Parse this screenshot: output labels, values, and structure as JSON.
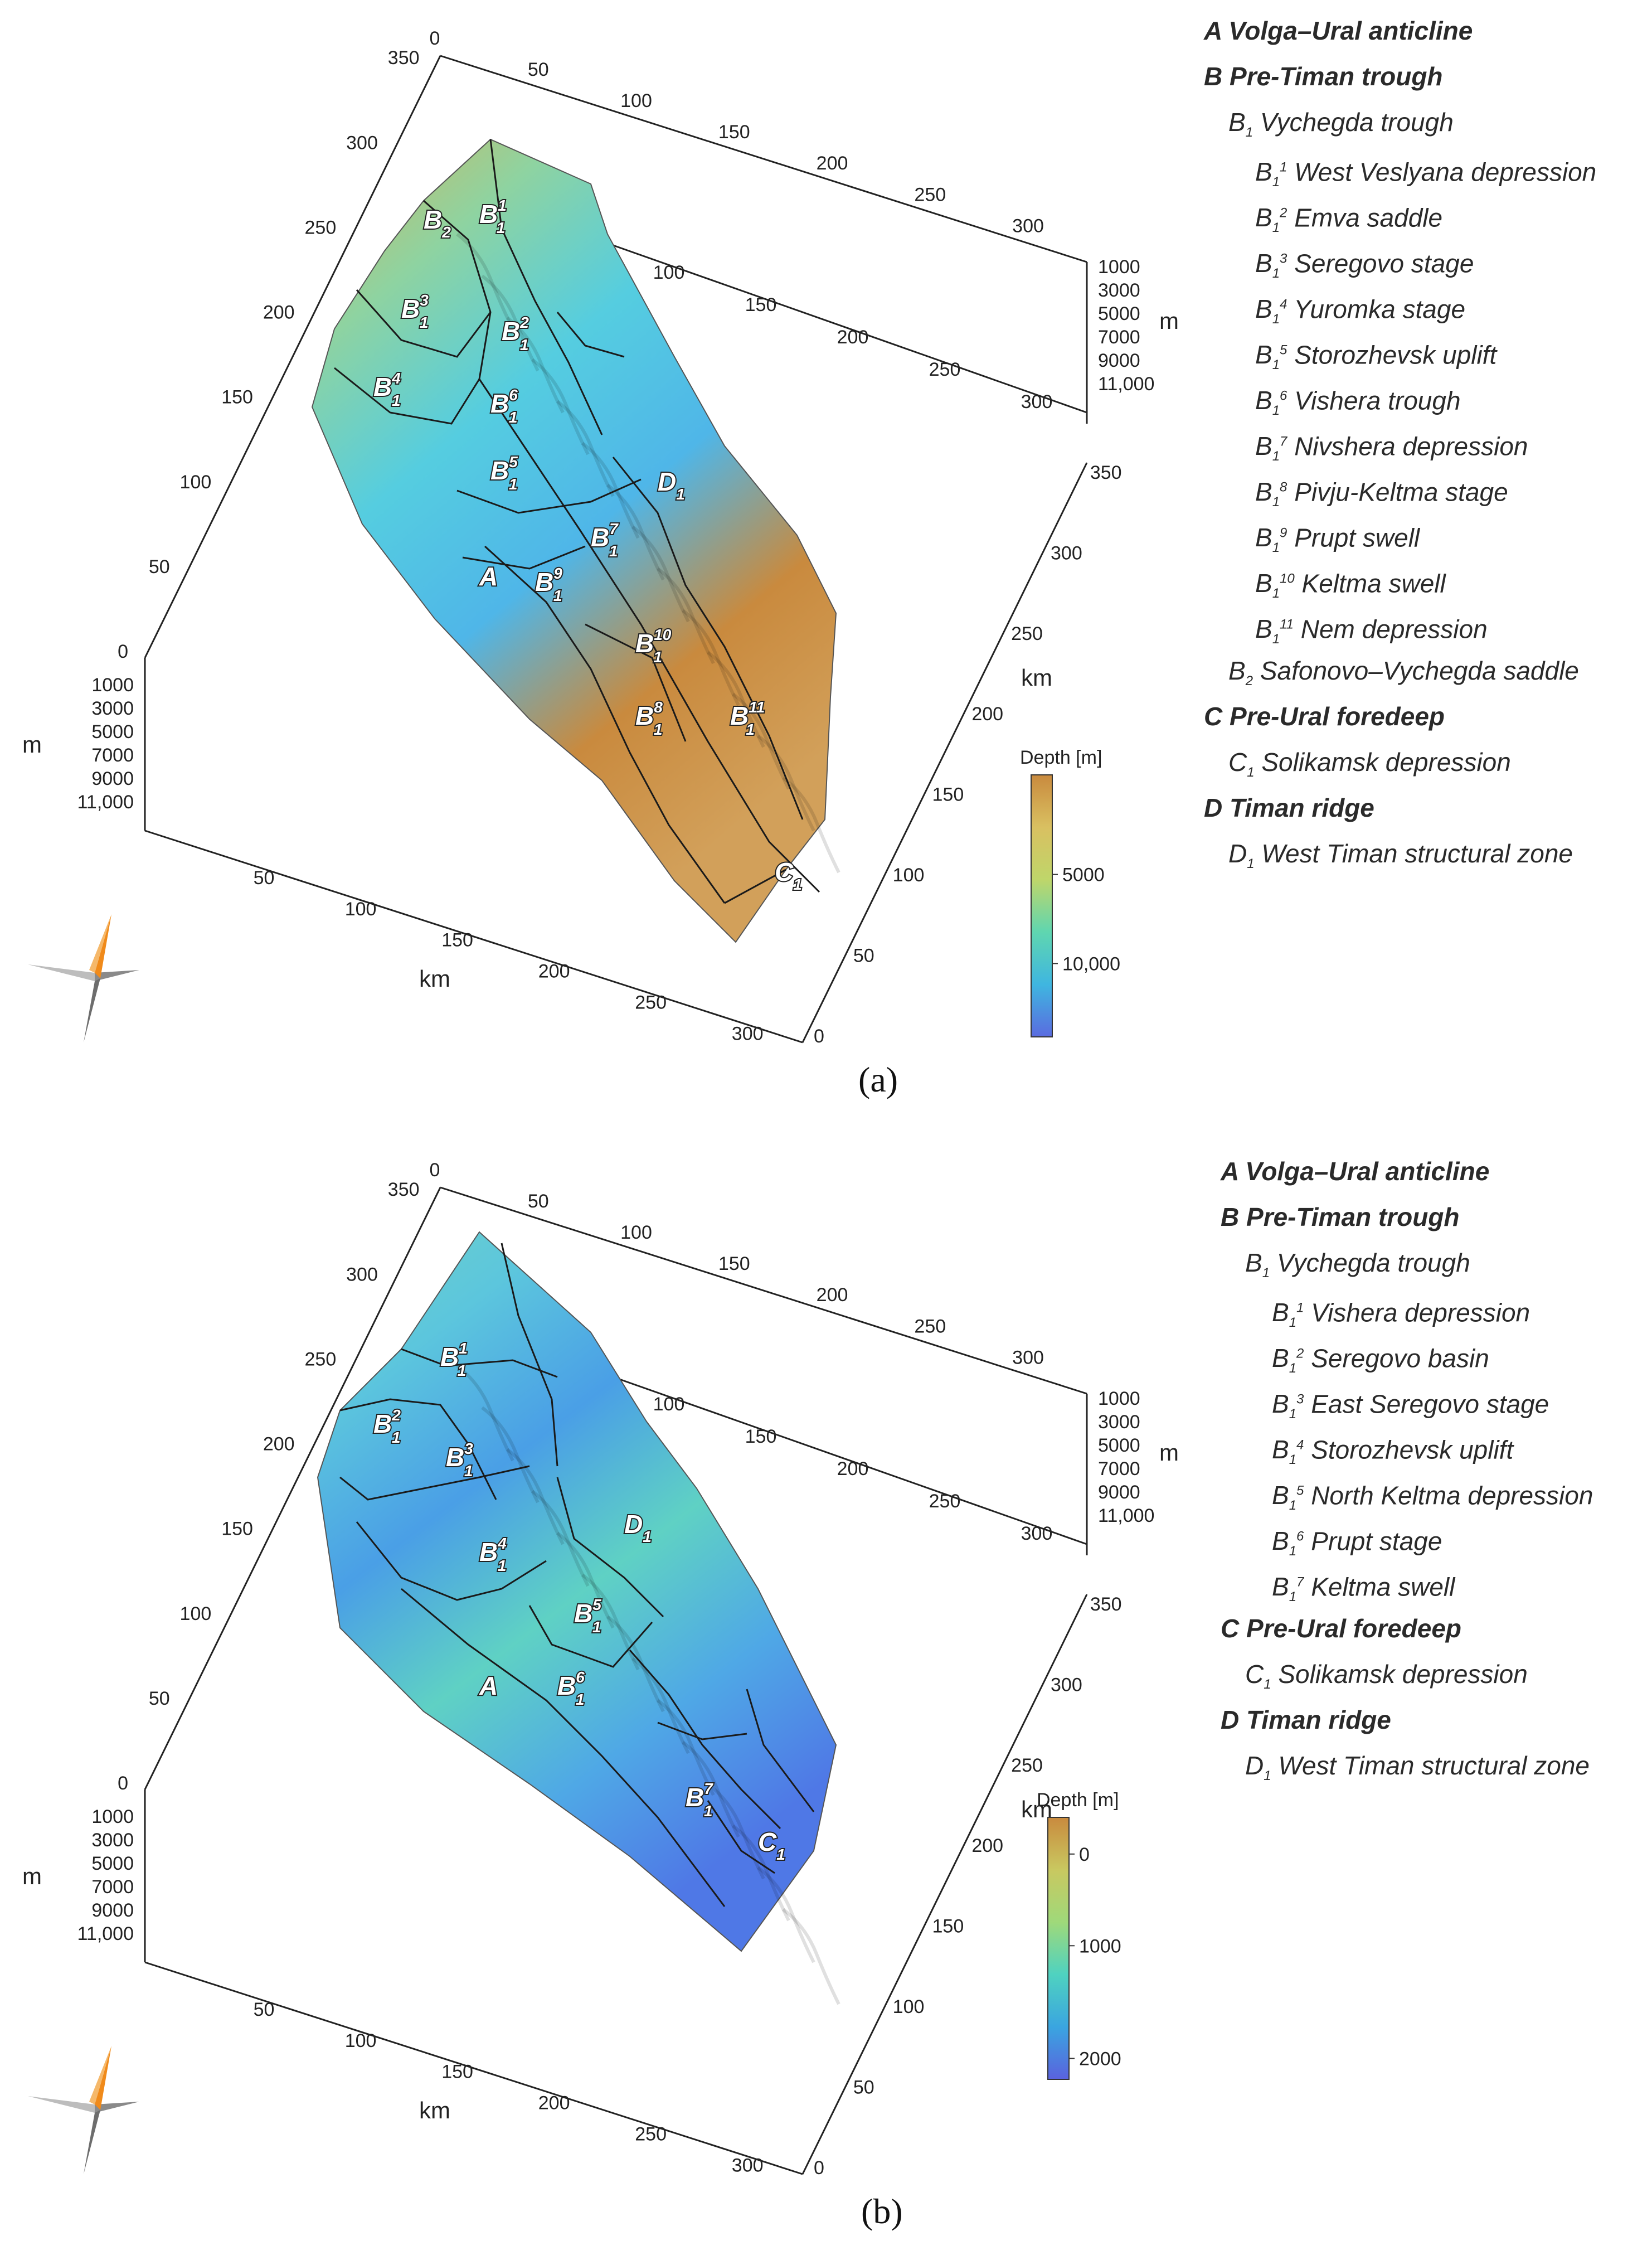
{
  "panels": [
    {
      "id": "a",
      "panel_label": "(a)",
      "axes": {
        "x_ticks": [
          "0",
          "50",
          "100",
          "150",
          "200",
          "250",
          "300"
        ],
        "x_unit": "km",
        "y_ticks": [
          "0",
          "50",
          "100",
          "150",
          "200",
          "250",
          "300",
          "350"
        ],
        "y_unit": "km",
        "z_ticks": [
          "1000",
          "3000",
          "5000",
          "7000",
          "9000",
          "11,000"
        ],
        "z_unit": "m",
        "left_ticks": [
          "0",
          "50",
          "100",
          "150",
          "200",
          "250",
          "300",
          "350"
        ],
        "back_ticks": [
          "0",
          "50",
          "100",
          "150",
          "200",
          "250",
          "300"
        ],
        "mid_ticks": [
          "100",
          "150",
          "200",
          "250",
          "300"
        ]
      },
      "colorbar": {
        "title": "Depth [m]",
        "ticks": [
          "5000",
          "10,000"
        ],
        "colors": [
          "#c98a3e",
          "#d9c061",
          "#bfd66a",
          "#5fd6b0",
          "#3fb6e0",
          "#5a6be0"
        ]
      },
      "region_labels": [
        {
          "base": "B",
          "sub": "2",
          "sup": ""
        },
        {
          "base": "B",
          "sub": "1",
          "sup": "1"
        },
        {
          "base": "B",
          "sub": "1",
          "sup": "3"
        },
        {
          "base": "B",
          "sub": "1",
          "sup": "2"
        },
        {
          "base": "B",
          "sub": "1",
          "sup": "4"
        },
        {
          "base": "B",
          "sub": "1",
          "sup": "6"
        },
        {
          "base": "B",
          "sub": "1",
          "sup": "5"
        },
        {
          "base": "D",
          "sub": "1",
          "sup": ""
        },
        {
          "base": "B",
          "sub": "1",
          "sup": "7"
        },
        {
          "base": "A",
          "sub": "",
          "sup": ""
        },
        {
          "base": "B",
          "sub": "1",
          "sup": "9"
        },
        {
          "base": "B",
          "sub": "1",
          "sup": "10"
        },
        {
          "base": "B",
          "sub": "1",
          "sup": "8"
        },
        {
          "base": "B",
          "sub": "1",
          "sup": "11"
        },
        {
          "base": "C",
          "sub": "1",
          "sup": ""
        }
      ],
      "legend": [
        {
          "level": 0,
          "code": "A",
          "sub": "",
          "sup": "",
          "name": "Volga–Ural anticline"
        },
        {
          "level": 0,
          "code": "B",
          "sub": "",
          "sup": "",
          "name": "Pre-Timan trough"
        },
        {
          "level": 1,
          "code": "B",
          "sub": "1",
          "sup": "",
          "name": "Vychegda trough"
        },
        {
          "level": 2,
          "code": "B",
          "sub": "1",
          "sup": "1",
          "name": "West Veslyana depression"
        },
        {
          "level": 2,
          "code": "B",
          "sub": "1",
          "sup": "2",
          "name": "Emva saddle"
        },
        {
          "level": 2,
          "code": "B",
          "sub": "1",
          "sup": "3",
          "name": "Seregovo stage"
        },
        {
          "level": 2,
          "code": "B",
          "sub": "1",
          "sup": "4",
          "name": "Yuromka stage"
        },
        {
          "level": 2,
          "code": "B",
          "sub": "1",
          "sup": "5",
          "name": "Storozhevsk uplift"
        },
        {
          "level": 2,
          "code": "B",
          "sub": "1",
          "sup": "6",
          "name": "Vishera trough"
        },
        {
          "level": 2,
          "code": "B",
          "sub": "1",
          "sup": "7",
          "name": "Nivshera depression"
        },
        {
          "level": 2,
          "code": "B",
          "sub": "1",
          "sup": "8",
          "name": "Pivju-Keltma stage"
        },
        {
          "level": 2,
          "code": "B",
          "sub": "1",
          "sup": "9",
          "name": "Prupt swell"
        },
        {
          "level": 2,
          "code": "B",
          "sub": "1",
          "sup": "10",
          "name": "Keltma swell"
        },
        {
          "level": 2,
          "code": "B",
          "sub": "1",
          "sup": "11",
          "name": "Nem depression"
        },
        {
          "level": 1,
          "code": "B",
          "sub": "2",
          "sup": "",
          "name": "Safonovo–Vychegda saddle"
        },
        {
          "level": 0,
          "code": "C",
          "sub": "",
          "sup": "",
          "name": "Pre-Ural foredeep"
        },
        {
          "level": 1,
          "code": "C",
          "sub": "1",
          "sup": "",
          "name": "Solikamsk depression"
        },
        {
          "level": 0,
          "code": "D",
          "sub": "",
          "sup": "",
          "name": "Timan ridge"
        },
        {
          "level": 1,
          "code": "D",
          "sub": "1",
          "sup": "",
          "name": "West Timan structural zone"
        }
      ]
    },
    {
      "id": "b",
      "panel_label": "(b)",
      "axes": {
        "x_ticks": [
          "0",
          "50",
          "100",
          "150",
          "200",
          "250",
          "300"
        ],
        "x_unit": "km",
        "y_ticks": [
          "0",
          "50",
          "100",
          "150",
          "200",
          "250",
          "300",
          "350"
        ],
        "y_unit": "km",
        "z_ticks": [
          "1000",
          "3000",
          "5000",
          "7000",
          "9000",
          "11,000"
        ],
        "z_unit": "m",
        "left_ticks": [
          "0",
          "50",
          "100",
          "150",
          "200",
          "250",
          "300",
          "350"
        ],
        "back_ticks": [
          "0",
          "50",
          "100",
          "150",
          "200",
          "250",
          "300"
        ],
        "mid_ticks": [
          "100",
          "150",
          "200",
          "250",
          "300"
        ]
      },
      "colorbar": {
        "title": "Depth [m]",
        "ticks": [
          "0",
          "1000",
          "2000"
        ],
        "colors": [
          "#c98a3e",
          "#c9c860",
          "#9fd97a",
          "#4fd2c0",
          "#3aa5e0",
          "#5a62de"
        ]
      },
      "region_labels": [
        {
          "base": "B",
          "sub": "1",
          "sup": "1"
        },
        {
          "base": "B",
          "sub": "1",
          "sup": "2"
        },
        {
          "base": "B",
          "sub": "1",
          "sup": "3"
        },
        {
          "base": "B",
          "sub": "1",
          "sup": "4"
        },
        {
          "base": "D",
          "sub": "1",
          "sup": ""
        },
        {
          "base": "B",
          "sub": "1",
          "sup": "5"
        },
        {
          "base": "A",
          "sub": "",
          "sup": ""
        },
        {
          "base": "B",
          "sub": "1",
          "sup": "6"
        },
        {
          "base": "B",
          "sub": "1",
          "sup": "7"
        },
        {
          "base": "C",
          "sub": "1",
          "sup": ""
        }
      ],
      "legend": [
        {
          "level": 0,
          "code": "A",
          "sub": "",
          "sup": "",
          "name": "Volga–Ural anticline"
        },
        {
          "level": 0,
          "code": "B",
          "sub": "",
          "sup": "",
          "name": "Pre-Timan trough"
        },
        {
          "level": 1,
          "code": "B",
          "sub": "1",
          "sup": "",
          "name": "Vychegda trough"
        },
        {
          "level": 2,
          "code": "B",
          "sub": "1",
          "sup": "1",
          "name": "Vishera depression"
        },
        {
          "level": 2,
          "code": "B",
          "sub": "1",
          "sup": "2",
          "name": "Seregovo basin"
        },
        {
          "level": 2,
          "code": "B",
          "sub": "1",
          "sup": "3",
          "name": "East Seregovo stage"
        },
        {
          "level": 2,
          "code": "B",
          "sub": "1",
          "sup": "4",
          "name": "Storozhevsk uplift"
        },
        {
          "level": 2,
          "code": "B",
          "sub": "1",
          "sup": "5",
          "name": "North Keltma depression"
        },
        {
          "level": 2,
          "code": "B",
          "sub": "1",
          "sup": "6",
          "name": "Prupt stage"
        },
        {
          "level": 2,
          "code": "B",
          "sub": "1",
          "sup": "7",
          "name": "Keltma swell"
        },
        {
          "level": 0,
          "code": "C",
          "sub": "",
          "sup": "",
          "name": "Pre-Ural foredeep"
        },
        {
          "level": 1,
          "code": "C",
          "sub": "1",
          "sup": "",
          "name": "Solikamsk depression"
        },
        {
          "level": 0,
          "code": "D",
          "sub": "",
          "sup": "",
          "name": "Timan ridge"
        },
        {
          "level": 1,
          "code": "D",
          "sub": "1",
          "sup": "",
          "name": "West Timan structural zone"
        }
      ]
    }
  ]
}
